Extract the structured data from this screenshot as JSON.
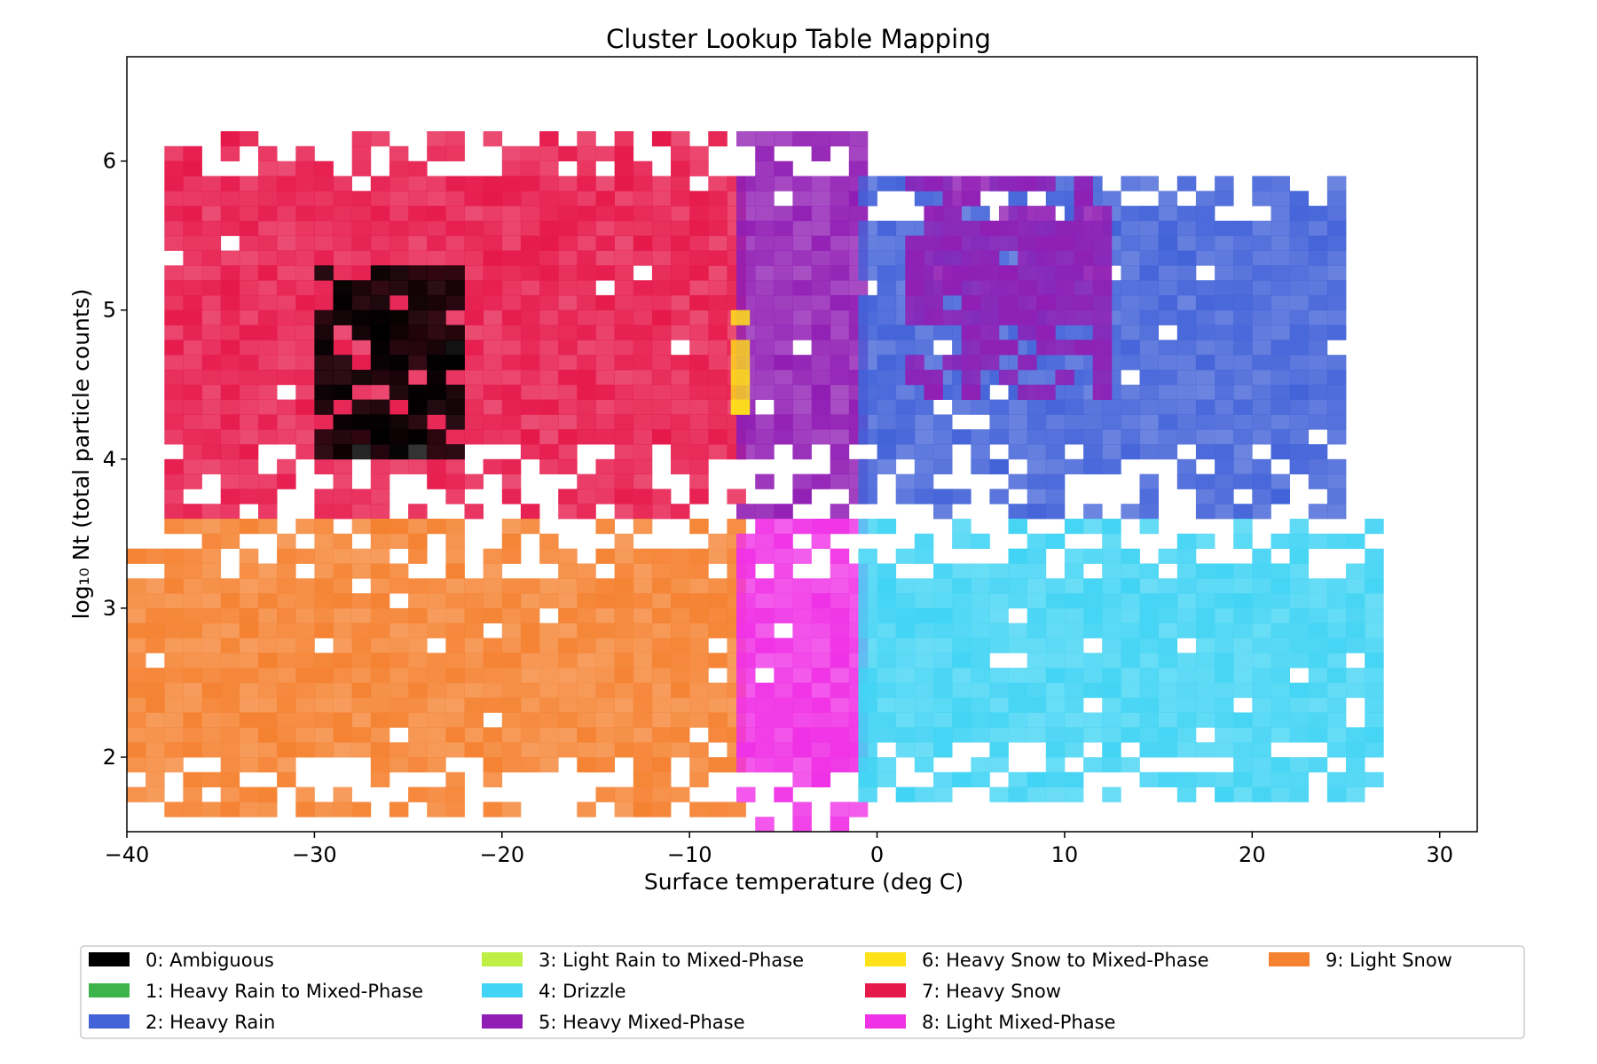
{
  "chart_data": {
    "type": "heatmap",
    "title": "Cluster Lookup Table Mapping",
    "xlabel": "Surface temperature (deg C)",
    "ylabel": "log₁₀ Nt (total particle counts)",
    "xlim": [
      -40,
      32
    ],
    "ylim": [
      1.5,
      6.7
    ],
    "x_ticks": [
      -40,
      -30,
      -20,
      -10,
      0,
      10,
      20,
      30
    ],
    "x_tick_labels": [
      "−40",
      "−30",
      "−20",
      "−10",
      "0",
      "10",
      "20",
      "30"
    ],
    "y_ticks": [
      2,
      3,
      4,
      5,
      6
    ],
    "y_tick_labels": [
      "2",
      "3",
      "4",
      "5",
      "6"
    ],
    "grid": false,
    "legend_position": "bottom",
    "legend": [
      {
        "label": "0: Ambiguous",
        "color": "#000000"
      },
      {
        "label": "1: Heavy Rain to Mixed-Phase",
        "color": "#3cb44b"
      },
      {
        "label": "2: Heavy Rain",
        "color": "#4363d8"
      },
      {
        "label": "3: Light Rain to Mixed-Phase",
        "color": "#bfef45"
      },
      {
        "label": "4: Drizzle",
        "color": "#42d4f4"
      },
      {
        "label": "5: Heavy Mixed-Phase",
        "color": "#911eb4"
      },
      {
        "label": "6: Heavy Snow to Mixed-Phase",
        "color": "#ffe119"
      },
      {
        "label": "7: Heavy Snow",
        "color": "#e6194b"
      },
      {
        "label": "8: Light Mixed-Phase",
        "color": "#f032e6"
      },
      {
        "label": "9: Light Snow",
        "color": "#f58231"
      }
    ],
    "regions": [
      {
        "cluster": 7,
        "t_range": [
          -38,
          -7.5
        ],
        "log_nt_range": [
          3.6,
          6.2
        ]
      },
      {
        "cluster": 9,
        "t_range": [
          -40,
          -7.5
        ],
        "log_nt_range": [
          1.6,
          3.6
        ]
      },
      {
        "cluster": 5,
        "t_range": [
          -7.5,
          -1
        ],
        "log_nt_range": [
          3.6,
          6.2
        ]
      },
      {
        "cluster": 8,
        "t_range": [
          -7.5,
          -1
        ],
        "log_nt_range": [
          1.5,
          3.6
        ]
      },
      {
        "cluster": 2,
        "t_range": [
          -1,
          25
        ],
        "log_nt_range": [
          3.6,
          5.9
        ]
      },
      {
        "cluster": 4,
        "t_range": [
          -1,
          27
        ],
        "log_nt_range": [
          1.7,
          3.6
        ]
      },
      {
        "cluster": 5,
        "t_range": [
          1.5,
          12
        ],
        "log_nt_range": [
          4.4,
          5.9
        ]
      },
      {
        "cluster": 6,
        "t_range": [
          -7.8,
          -7.2
        ],
        "log_nt_range": [
          4.3,
          5.0
        ]
      },
      {
        "cluster": 0,
        "t_range": [
          -30,
          -22
        ],
        "log_nt_range": [
          4.0,
          5.3
        ]
      }
    ]
  }
}
